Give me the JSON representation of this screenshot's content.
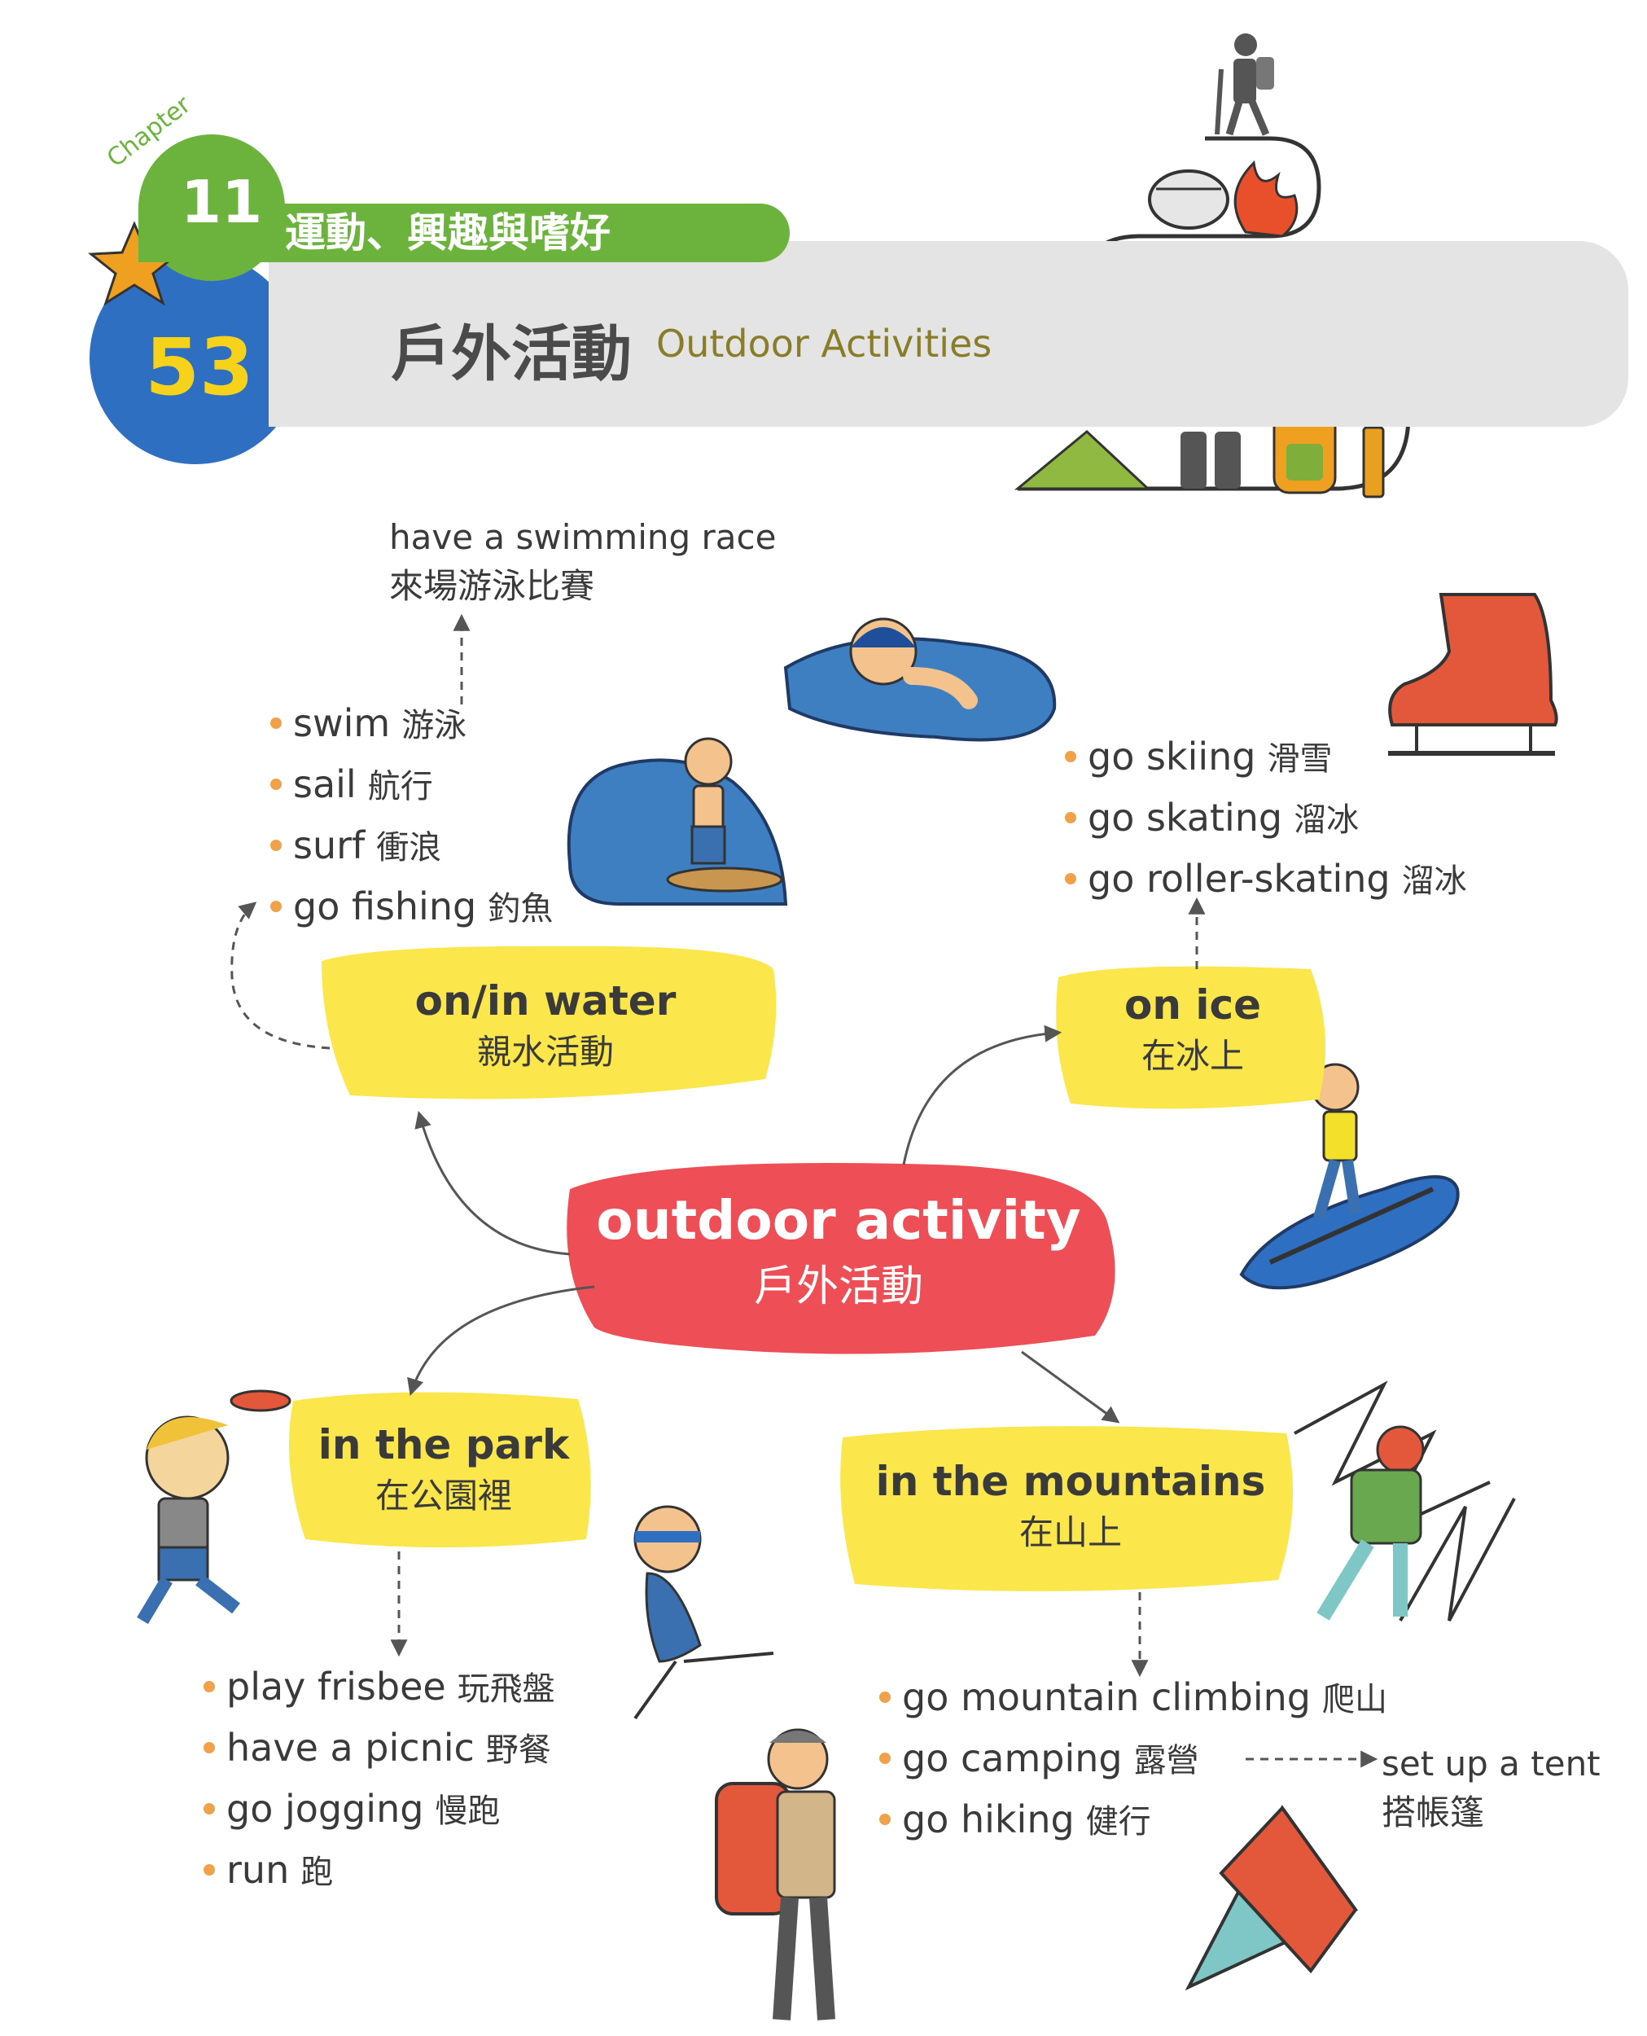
{
  "header": {
    "chapter_word": "Chapter",
    "chapter_number": "11",
    "chapter_title": "運動、興趣與嗜好",
    "unit_number": "53",
    "unit_title_zh": "戶外活動",
    "unit_title_en": "Outdoor Activities"
  },
  "center": {
    "en": "outdoor activity",
    "zh": "戶外活動"
  },
  "water": {
    "en": "on/in water",
    "zh": "親水活動",
    "items": [
      {
        "en": "swim",
        "zh": "游泳"
      },
      {
        "en": "sail",
        "zh": "航行"
      },
      {
        "en": "surf",
        "zh": "衝浪"
      },
      {
        "en": "go fishing",
        "zh": "釣魚"
      }
    ],
    "extra": {
      "en": "have a swimming race",
      "zh": "來場游泳比賽"
    }
  },
  "ice": {
    "en": "on ice",
    "zh": "在冰上",
    "items": [
      {
        "en": "go skiing",
        "zh": "滑雪"
      },
      {
        "en": "go skating",
        "zh": "溜冰"
      },
      {
        "en": "go roller-skating",
        "zh": "溜冰"
      }
    ]
  },
  "park": {
    "en": "in the park",
    "zh": "在公園裡",
    "items": [
      {
        "en": "play frisbee",
        "zh": "玩飛盤"
      },
      {
        "en": "have a picnic",
        "zh": "野餐"
      },
      {
        "en": "go jogging",
        "zh": "慢跑"
      },
      {
        "en": "run",
        "zh": "跑"
      }
    ]
  },
  "mountains": {
    "en": "in the mountains",
    "zh": "在山上",
    "items": [
      {
        "en": "go mountain climbing",
        "zh": "爬山"
      },
      {
        "en": "go camping",
        "zh": "露營"
      },
      {
        "en": "go hiking",
        "zh": "健行"
      }
    ],
    "extra": {
      "en": "set up a tent",
      "zh": "搭帳篷"
    }
  },
  "colors": {
    "green": "#6cb33e",
    "gray": "#e4e4e4",
    "blue": "#2f6fc1",
    "yellow": "#f7d21b",
    "hub_yellow": "#fbe64c",
    "center_red": "#ee4f56",
    "bullet": "#f0a24a"
  }
}
